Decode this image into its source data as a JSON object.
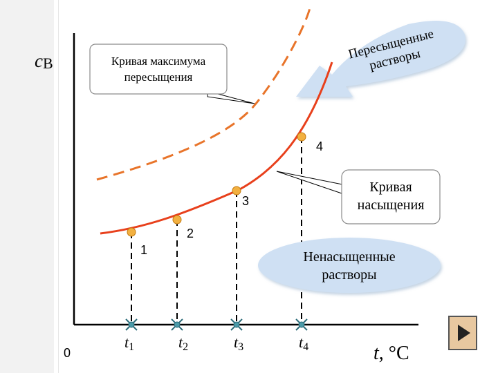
{
  "axes": {
    "y_label_italic": "c",
    "y_label_sub": "B",
    "origin": "0",
    "x_label": "t",
    "x_unit": ", °C"
  },
  "ticks": [
    {
      "main": "t",
      "sub": "1"
    },
    {
      "main": "t",
      "sub": "2"
    },
    {
      "main": "t",
      "sub": "3"
    },
    {
      "main": "t",
      "sub": "4"
    }
  ],
  "points": [
    "1",
    "2",
    "3",
    "4"
  ],
  "callouts": {
    "max_supersat": [
      "Кривая максимума",
      "пересыщения"
    ],
    "saturation": [
      "Кривая",
      "насыщения"
    ],
    "unsaturated": [
      "Ненасыщенные",
      "растворы"
    ],
    "supersaturated": [
      "Пересыщенные",
      "растворы"
    ]
  },
  "colors": {
    "saturation_curve": "#e8401c",
    "max_curve": "#e8742a",
    "point_fill": "#f2b040",
    "cloud_fill": "#cfe0f3",
    "tick_marker": "#4a9aa8"
  },
  "nav": {
    "next_icon": "play-triangle-icon"
  }
}
